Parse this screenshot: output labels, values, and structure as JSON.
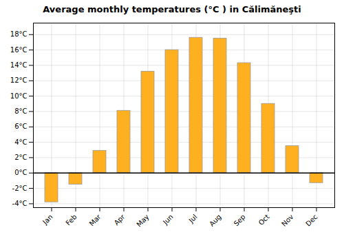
{
  "chart_data": {
    "type": "bar",
    "title": "Average monthly temperatures (°C ) in Călimăneşti",
    "categories": [
      "Jan",
      "Feb",
      "Mar",
      "Apr",
      "May",
      "Jun",
      "Jul",
      "Aug",
      "Sep",
      "Oct",
      "Nov",
      "Dec"
    ],
    "values": [
      -3.8,
      -1.5,
      2.9,
      8.1,
      13.2,
      16.0,
      17.6,
      17.5,
      14.3,
      9.0,
      3.5,
      -1.3
    ],
    "color": "#FFB020",
    "ylim": [
      -4.5,
      19.5
    ],
    "yticks": [
      {
        "value": -4,
        "label": "-4°C"
      },
      {
        "value": -2,
        "label": "-2°C"
      },
      {
        "value": 0,
        "label": "0°C"
      },
      {
        "value": 2,
        "label": "2°C"
      },
      {
        "value": 4,
        "label": "4°C"
      },
      {
        "value": 6,
        "label": "6°C"
      },
      {
        "value": 8,
        "label": "8°C"
      },
      {
        "value": 10,
        "label": "10°C"
      },
      {
        "value": 12,
        "label": "12°C"
      },
      {
        "value": 14,
        "label": "14°C"
      },
      {
        "value": 16,
        "label": "16°C"
      },
      {
        "value": 18,
        "label": "18°C"
      }
    ],
    "grid": true
  }
}
